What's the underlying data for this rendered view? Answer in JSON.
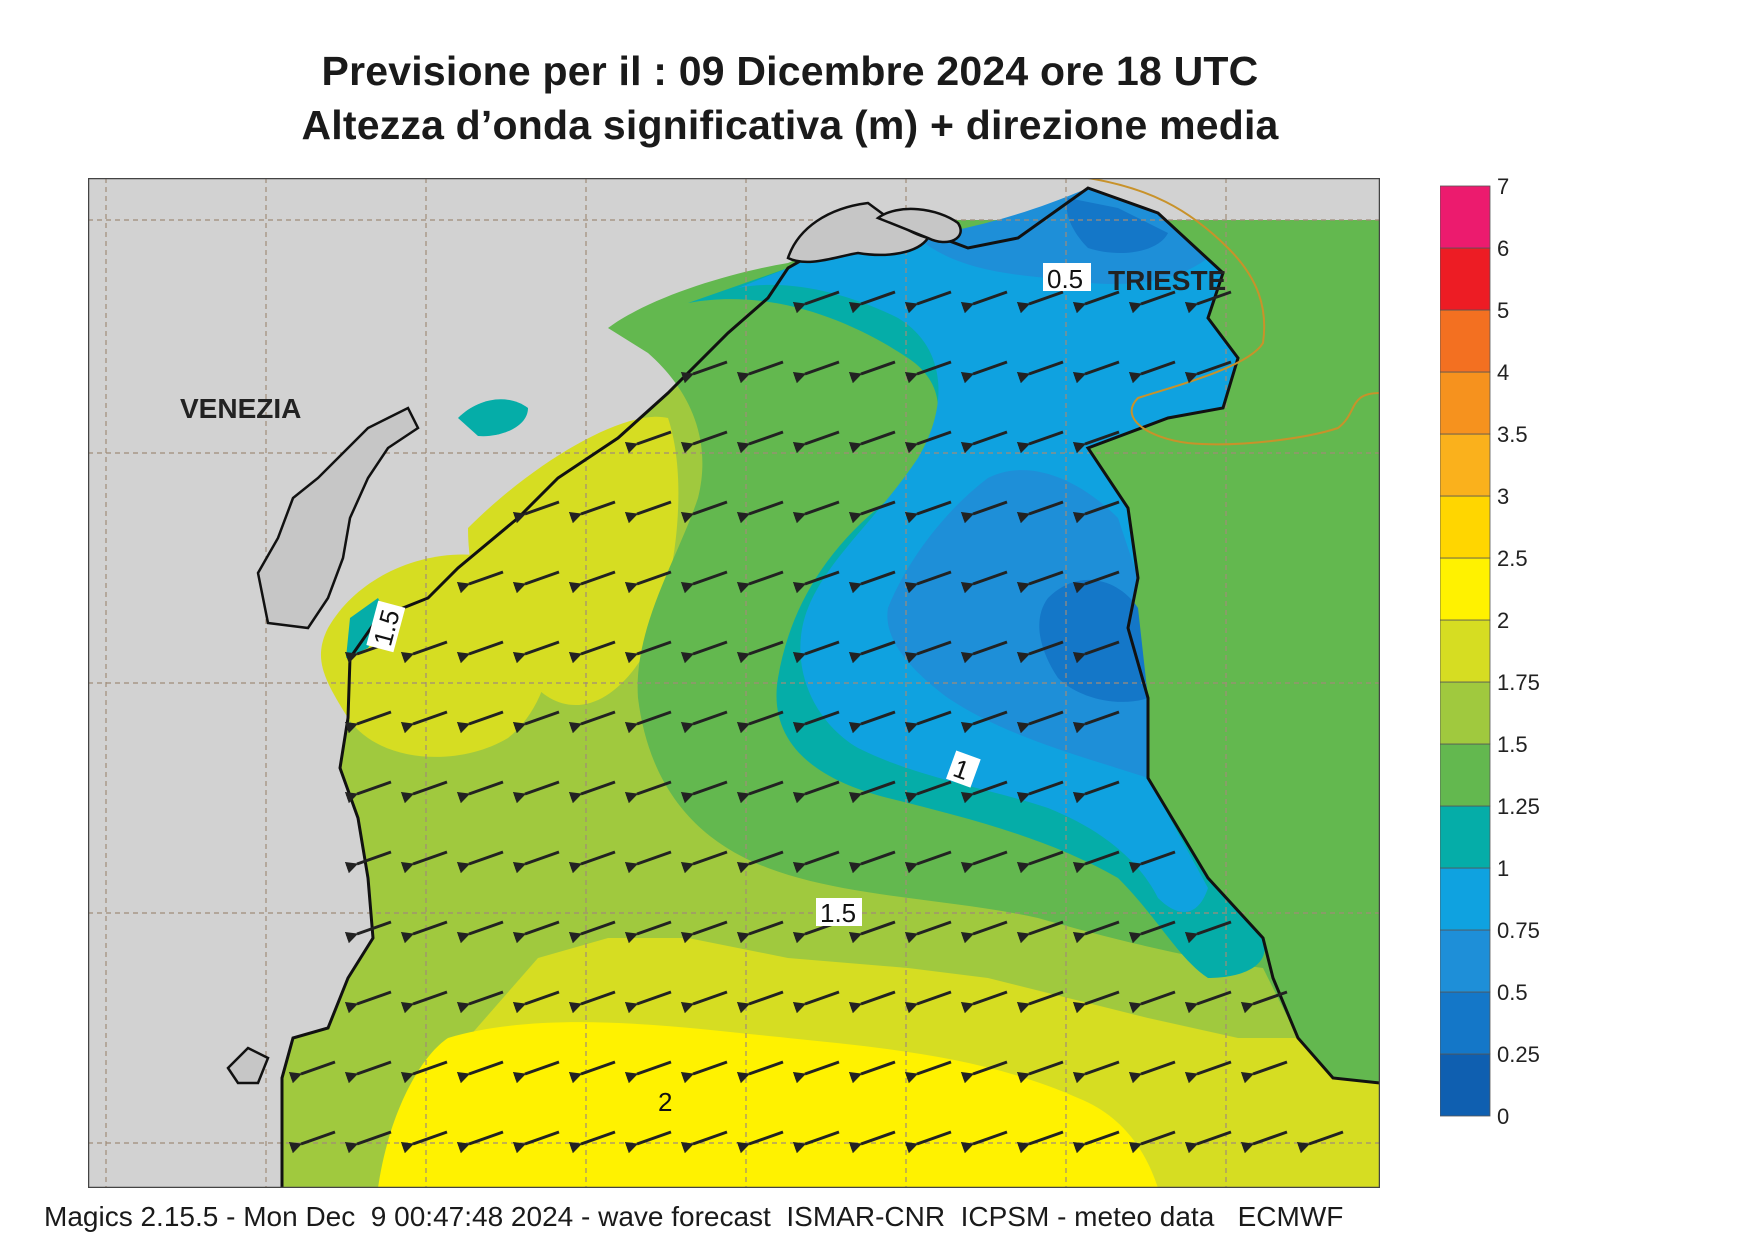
{
  "title": {
    "line1": "Previsione per il  :  09 Dicembre  2024   ore 18 UTC",
    "line2": "Altezza d’onda significativa (m) + direzione media"
  },
  "labels": {
    "venezia": "VENEZIA",
    "trieste": "TRIESTE"
  },
  "contour_labels": [
    "0.5",
    "1",
    "1.5",
    "1.5",
    "2"
  ],
  "legend": {
    "ticks": [
      "0",
      "0.25",
      "0.5",
      "0.75",
      "1",
      "1.25",
      "1.5",
      "1.75",
      "2",
      "2.5",
      "3",
      "3.5",
      "4",
      "5",
      "6",
      "7"
    ],
    "colors": [
      "#0f5fb0",
      "#1477c8",
      "#1e8fd8",
      "#0fa2e0",
      "#05ada8",
      "#63b84f",
      "#a0c93e",
      "#d6dd22",
      "#fff200",
      "#ffd600",
      "#fab11c",
      "#f6921e",
      "#f37021",
      "#ed1c24",
      "#ec1b6e"
    ]
  },
  "footer": "Magics 2.15.5 - Mon Dec  9 00:47:48 2024 - wave forecast  ISMAR-CNR  ICPSM - meteo data   ECMWF"
}
